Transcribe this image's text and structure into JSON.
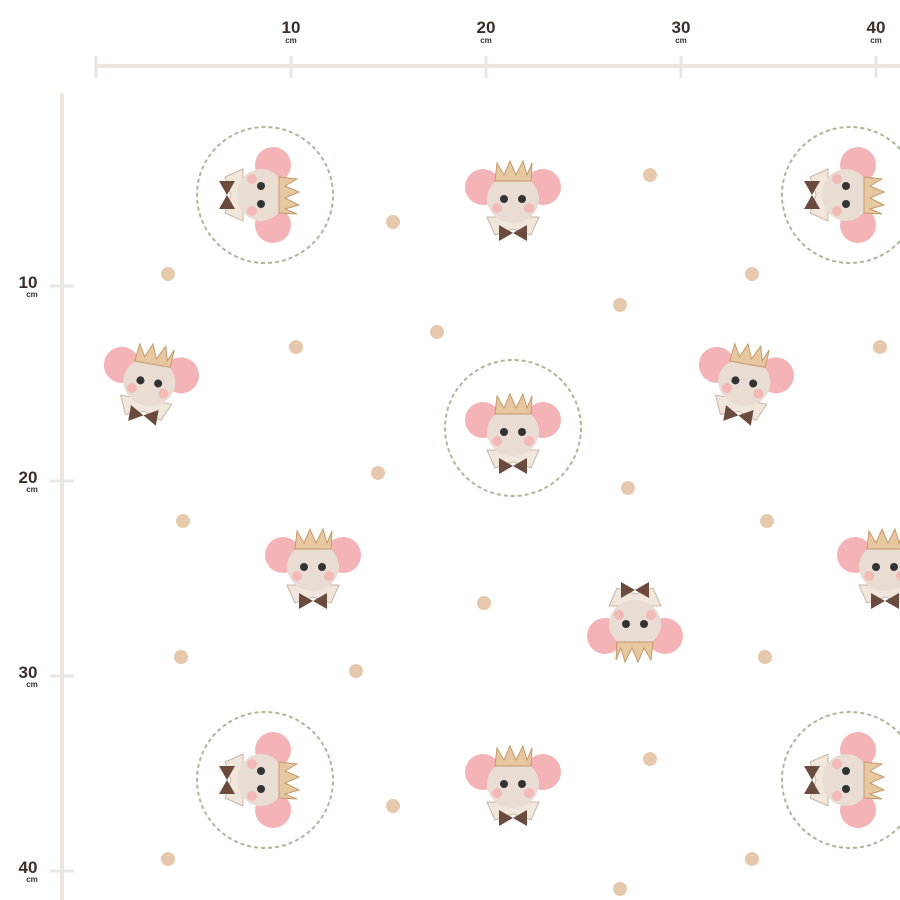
{
  "ruler": {
    "unit": "cm",
    "marks": [
      10,
      20,
      30,
      40
    ]
  }
}
